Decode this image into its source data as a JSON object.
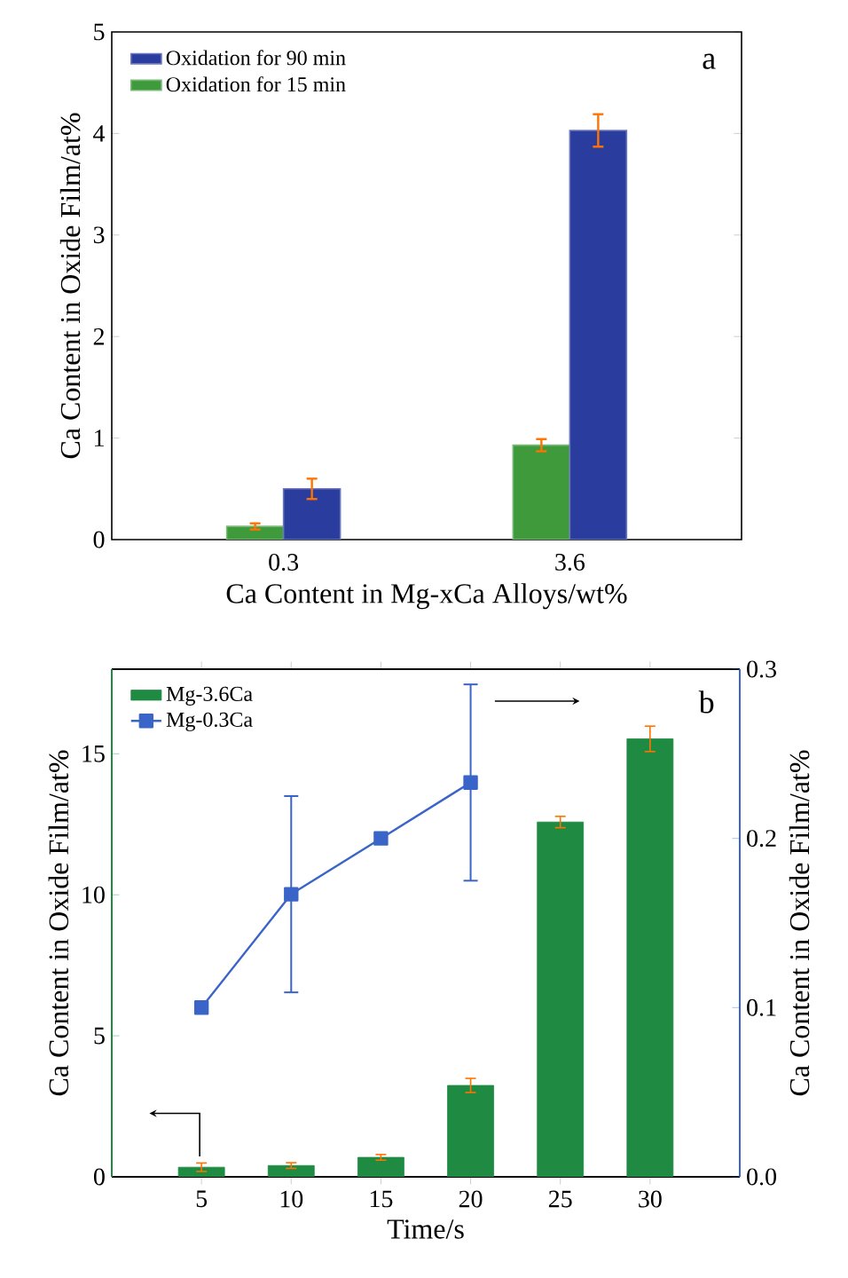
{
  "chart_data": [
    {
      "type": "bar",
      "annotations": [
        "a"
      ],
      "categories": [
        "0.3",
        "3.6"
      ],
      "xlabel": "Ca Content in Mg-xCa Alloys/wt%",
      "ylabel": "Ca Content in Oxide Film/at%",
      "ylim": [
        0,
        5
      ],
      "yticks": [
        0,
        1,
        2,
        3,
        4,
        5
      ],
      "legend": "top left",
      "series": [
        {
          "name": "Oxidation for 15 min",
          "color": "#3f9a3c",
          "values": [
            0.13,
            0.93
          ],
          "errors": [
            0.03,
            0.06
          ]
        },
        {
          "name": "Oxidation for 90 min",
          "color": "#2a3d9e",
          "values": [
            0.5,
            4.03
          ],
          "errors": [
            0.1,
            0.16
          ]
        }
      ]
    },
    {
      "type": "bar",
      "annotations": [
        "b"
      ],
      "x": [
        5,
        10,
        15,
        20,
        25,
        30
      ],
      "xlim": [
        0,
        35
      ],
      "xticks": [
        5,
        10,
        15,
        20,
        25,
        30
      ],
      "xlabel": "Time/s",
      "ylabel": "Ca Content in Oxide Film/at%",
      "y2label": "Ca Content in Oxide Film/at%",
      "ylim": [
        0,
        18
      ],
      "yticks": [
        0,
        5,
        10,
        15
      ],
      "y2lim": [
        0,
        0.3
      ],
      "y2ticks": [
        {
          "value": 0,
          "label": "0.0"
        },
        0.1,
        0.2,
        0.3
      ],
      "legend": "top left",
      "series": [
        {
          "name": "Mg-3.6Ca",
          "type": "bar",
          "color": "#1f8a42",
          "values": [
            0.34,
            0.4,
            0.69,
            3.24,
            12.58,
            15.53
          ],
          "errors": [
            0.15,
            0.1,
            0.1,
            0.25,
            0.2,
            0.45
          ]
        },
        {
          "name": "Mg-0.3Ca",
          "type": "line",
          "axis": "y2",
          "color": "#3a64c8",
          "marker": "square",
          "x": [
            5,
            10,
            15,
            20
          ],
          "values": [
            0.1,
            0.167,
            0.2,
            0.233
          ],
          "errors": [
            null,
            0.058,
            null,
            0.058
          ]
        }
      ]
    }
  ]
}
